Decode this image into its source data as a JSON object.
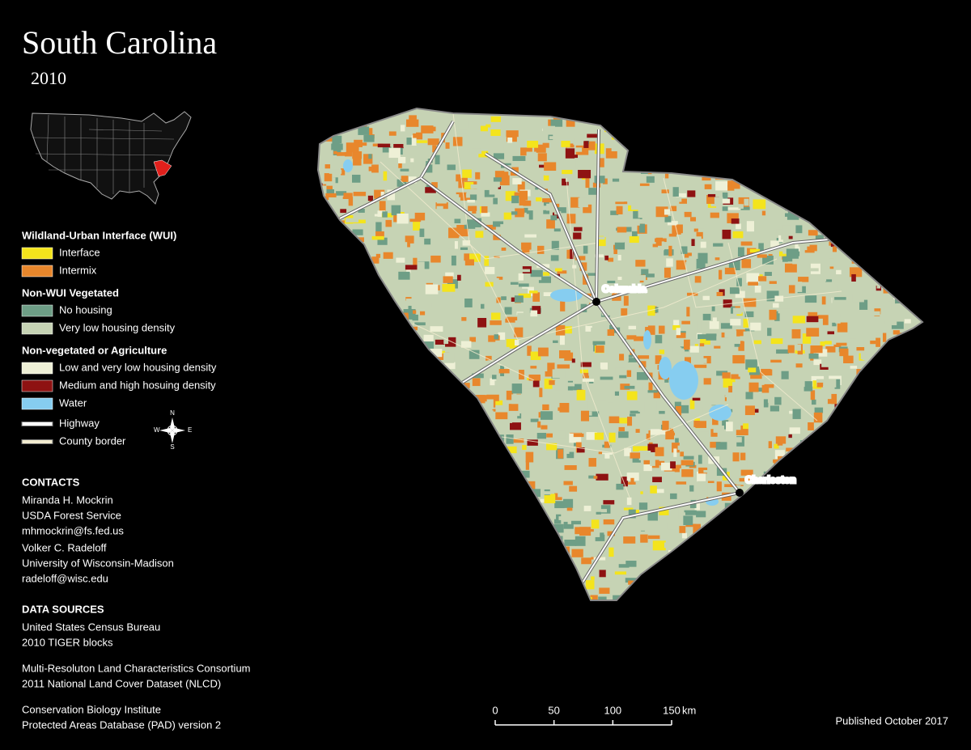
{
  "title": "South Carolina",
  "year": "2010",
  "legend": {
    "sections": [
      {
        "heading": "Wildland-Urban Interface (WUI)",
        "items": [
          {
            "label": "Interface",
            "color": "#f4e41c"
          },
          {
            "label": "Intermix",
            "color": "#e8872c"
          }
        ]
      },
      {
        "heading": "Non-WUI Vegetated",
        "items": [
          {
            "label": "No housing",
            "color": "#6e9e86"
          },
          {
            "label": "Very low housing density",
            "color": "#c6d3b4"
          }
        ]
      },
      {
        "heading": "Non-vegetated or Agriculture",
        "items": [
          {
            "label": "Low and very low housing density",
            "color": "#eef0d6"
          },
          {
            "label": "Medium and high hosuing density",
            "color": "#8e1212"
          },
          {
            "label": "Water",
            "color": "#86cdf0"
          }
        ]
      }
    ],
    "lines": [
      {
        "label": "Highway",
        "color": "#ffffff"
      },
      {
        "label": "County border",
        "color": "#f2ecd0"
      }
    ]
  },
  "compass": {
    "n": "N",
    "s": "S",
    "e": "E",
    "w": "W"
  },
  "cities": [
    {
      "name": "Columbia"
    },
    {
      "name": "Charleston"
    }
  ],
  "contacts": {
    "heading": "CONTACTS",
    "people": [
      [
        "Miranda H. Mockrin",
        "USDA Forest Service",
        "mhmockrin@fs.fed.us"
      ],
      [
        "Volker C. Radeloff",
        "University of Wisconsin-Madison",
        "radeloff@wisc.edu"
      ]
    ]
  },
  "data_sources": {
    "heading": "DATA SOURCES",
    "groups": [
      [
        "United States Census Bureau",
        "2010 TIGER blocks"
      ],
      [
        "Multi-Resoluton Land Characteristics Consortium",
        "2011 National Land Cover Dataset (NLCD)"
      ],
      [
        "Conservation Biology Institute",
        "Protected Areas Database (PAD) version 2"
      ]
    ]
  },
  "scale_bar": {
    "ticks": [
      0,
      50,
      100,
      150
    ],
    "unit": "km"
  },
  "footer": "Published October 2017"
}
